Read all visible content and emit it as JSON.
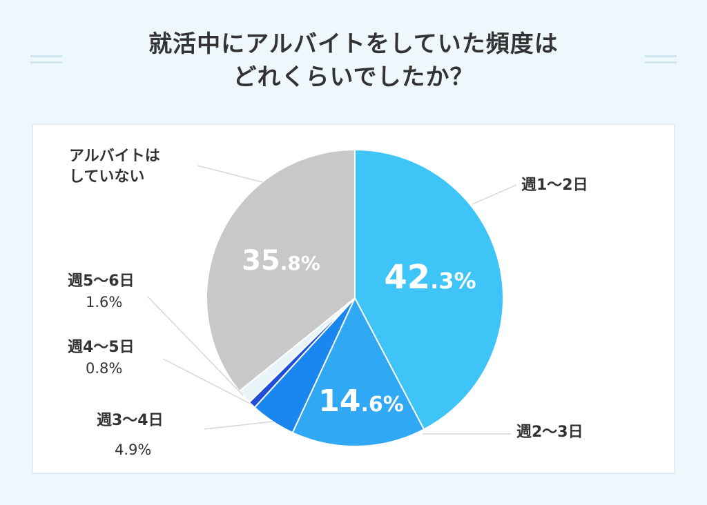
{
  "title": {
    "line1": "就活中にアルバイトをしていた頻度は",
    "line2": "どれくらいでしたか？"
  },
  "chart_data": {
    "type": "pie",
    "title": "就活中にアルバイトをしていた頻度はどれくらいでしたか？",
    "slices": [
      {
        "label": "週1〜2日",
        "value": 42.3,
        "value_int": "42",
        "value_dec": ".3%",
        "color": "#3fc4f8"
      },
      {
        "label": "週2〜3日",
        "value": 14.6,
        "value_int": "14",
        "value_dec": ".6%",
        "color": "#30a8f3"
      },
      {
        "label": "週3〜4日",
        "value": 4.9,
        "pct_text": "4.9%",
        "color": "#1a86f0"
      },
      {
        "label": "週4〜5日",
        "value": 0.8,
        "pct_text": "0.8%",
        "color": "#1d4fd8"
      },
      {
        "label": "週5〜6日",
        "value": 1.6,
        "pct_text": "1.6%",
        "color": "#e8f4f8"
      },
      {
        "label": "アルバイトは\nしていない",
        "label_line1": "アルバイトは",
        "label_line2": "していない",
        "value": 35.8,
        "value_int": "35",
        "value_dec": ".8%",
        "color": "#c8c8c8"
      }
    ],
    "legend": "none"
  }
}
